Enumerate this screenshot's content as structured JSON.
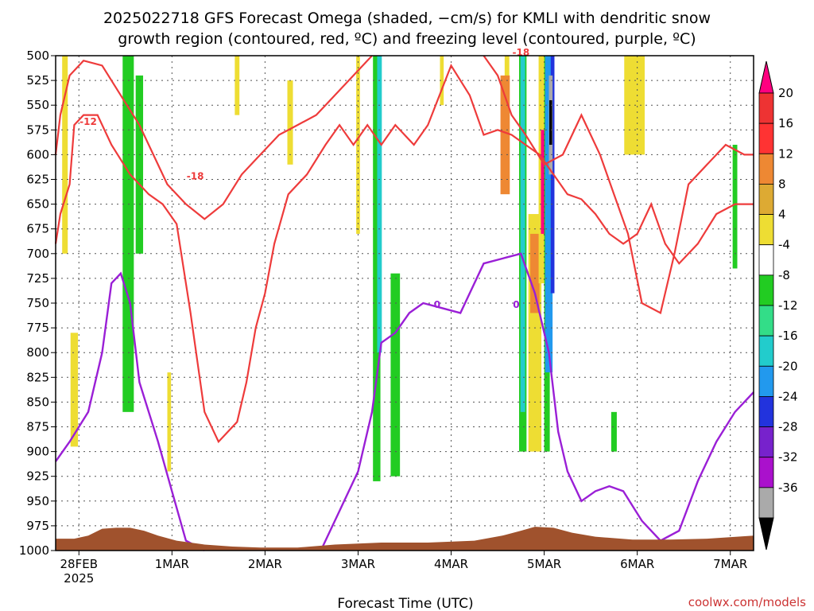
{
  "chart_data": {
    "type": "heatmap",
    "title_lines": [
      "2025022718 GFS Forecast Omega (shaded, −cm/s) for KMLI with dendritic snow",
      "growth region (contoured, red, ºC) and freezing level (contoured, purple, ºC)"
    ],
    "xlabel": "Forecast Time (UTC)",
    "credit": "coolwx.com/models",
    "x_axis": {
      "range_days": [
        "2025-02-27T18Z",
        "2025-03-07T06Z"
      ],
      "ticks": [
        {
          "label": "28FEB",
          "sublabel": "2025",
          "t": 0.25
        },
        {
          "label": "1MAR",
          "sublabel": "",
          "t": 1.25
        },
        {
          "label": "2MAR",
          "sublabel": "",
          "t": 2.25
        },
        {
          "label": "3MAR",
          "sublabel": "",
          "t": 3.25
        },
        {
          "label": "4MAR",
          "sublabel": "",
          "t": 4.25
        },
        {
          "label": "5MAR",
          "sublabel": "",
          "t": 5.25
        },
        {
          "label": "6MAR",
          "sublabel": "",
          "t": 6.25
        },
        {
          "label": "7MAR",
          "sublabel": "",
          "t": 7.25
        }
      ],
      "t_min": 0,
      "t_max": 7.5
    },
    "y_axis": {
      "unit": "hPa",
      "ylim": [
        500,
        1000
      ],
      "ticks": [
        500,
        525,
        550,
        575,
        600,
        625,
        650,
        675,
        700,
        725,
        750,
        775,
        800,
        825,
        850,
        875,
        900,
        925,
        950,
        975,
        1000
      ],
      "grid": true
    },
    "colorbar": {
      "levels": [
        20,
        16,
        12,
        8,
        4,
        -4,
        -8,
        -12,
        -16,
        -20,
        -24,
        -28,
        -32,
        -36
      ],
      "colors": [
        "#ff0080",
        "#ee3333",
        "#ff3333",
        "#ee8833",
        "#ddaa33",
        "#eedd33",
        "#ffffff",
        "#22cc22",
        "#33dd88",
        "#22cccc",
        "#2299ee",
        "#2233dd",
        "#7722cc",
        "#aa11cc",
        "#aaaaaa",
        "#000000"
      ]
    },
    "omega_bands": [
      {
        "t": 0.1,
        "width": 0.06,
        "p_top": 500,
        "p_bot": 700,
        "color": "#eedd33"
      },
      {
        "t": 0.2,
        "width": 0.08,
        "p_top": 780,
        "p_bot": 895,
        "color": "#eedd33"
      },
      {
        "t": 0.78,
        "width": 0.12,
        "p_top": 500,
        "p_bot": 860,
        "color": "#22cc22"
      },
      {
        "t": 0.9,
        "width": 0.08,
        "p_top": 520,
        "p_bot": 700,
        "color": "#22cc22"
      },
      {
        "t": 1.22,
        "width": 0.04,
        "p_top": 820,
        "p_bot": 920,
        "color": "#eedd33"
      },
      {
        "t": 1.95,
        "width": 0.05,
        "p_top": 500,
        "p_bot": 560,
        "color": "#eedd33"
      },
      {
        "t": 2.52,
        "width": 0.06,
        "p_top": 525,
        "p_bot": 610,
        "color": "#eedd33"
      },
      {
        "t": 3.25,
        "width": 0.04,
        "p_top": 500,
        "p_bot": 680,
        "color": "#eedd33"
      },
      {
        "t": 3.45,
        "width": 0.08,
        "p_top": 500,
        "p_bot": 930,
        "color": "#22cc22"
      },
      {
        "t": 3.48,
        "width": 0.05,
        "p_top": 500,
        "p_bot": 800,
        "color": "#22cccc"
      },
      {
        "t": 3.65,
        "width": 0.1,
        "p_top": 720,
        "p_bot": 925,
        "color": "#22cc22"
      },
      {
        "t": 4.15,
        "width": 0.04,
        "p_top": 500,
        "p_bot": 550,
        "color": "#eedd33"
      },
      {
        "t": 4.85,
        "width": 0.05,
        "p_top": 500,
        "p_bot": 600,
        "color": "#eedd33"
      },
      {
        "t": 4.83,
        "width": 0.1,
        "p_top": 520,
        "p_bot": 640,
        "color": "#ee8833"
      },
      {
        "t": 5.02,
        "width": 0.08,
        "p_top": 500,
        "p_bot": 900,
        "color": "#22cc22"
      },
      {
        "t": 5.02,
        "width": 0.05,
        "p_top": 500,
        "p_bot": 860,
        "color": "#22cccc"
      },
      {
        "t": 5.15,
        "width": 0.14,
        "p_top": 660,
        "p_bot": 900,
        "color": "#eedd33"
      },
      {
        "t": 5.15,
        "width": 0.1,
        "p_top": 680,
        "p_bot": 760,
        "color": "#ee8833"
      },
      {
        "t": 5.22,
        "width": 0.06,
        "p_top": 500,
        "p_bot": 730,
        "color": "#eedd33"
      },
      {
        "t": 5.24,
        "width": 0.05,
        "p_top": 575,
        "p_bot": 680,
        "color": "#ff0080"
      },
      {
        "t": 5.28,
        "width": 0.06,
        "p_top": 500,
        "p_bot": 900,
        "color": "#22cc22"
      },
      {
        "t": 5.3,
        "width": 0.08,
        "p_top": 500,
        "p_bot": 820,
        "color": "#2299ee"
      },
      {
        "t": 5.34,
        "width": 0.04,
        "p_top": 500,
        "p_bot": 740,
        "color": "#2233dd"
      },
      {
        "t": 5.32,
        "width": 0.04,
        "p_top": 520,
        "p_bot": 620,
        "color": "#aaaaaa"
      },
      {
        "t": 5.32,
        "width": 0.03,
        "p_top": 545,
        "p_bot": 590,
        "color": "#000000"
      },
      {
        "t": 6.15,
        "width": 0.06,
        "p_top": 500,
        "p_bot": 540,
        "color": "#ee8833"
      },
      {
        "t": 6.22,
        "width": 0.22,
        "p_top": 500,
        "p_bot": 600,
        "color": "#eedd33"
      },
      {
        "t": 6.0,
        "width": 0.06,
        "p_top": 860,
        "p_bot": 900,
        "color": "#22cc22"
      },
      {
        "t": 7.3,
        "width": 0.05,
        "p_top": 590,
        "p_bot": 715,
        "color": "#22cc22"
      }
    ],
    "dgz_contours": [
      {
        "label": "-12",
        "label_t": 0.35,
        "label_p": 570,
        "points": [
          [
            0.0,
            690
          ],
          [
            0.05,
            660
          ],
          [
            0.15,
            630
          ],
          [
            0.2,
            570
          ],
          [
            0.3,
            560
          ],
          [
            0.45,
            560
          ],
          [
            0.6,
            590
          ],
          [
            0.8,
            620
          ],
          [
            1.0,
            640
          ],
          [
            1.15,
            650
          ],
          [
            1.3,
            670
          ],
          [
            1.45,
            760
          ],
          [
            1.6,
            860
          ],
          [
            1.75,
            890
          ],
          [
            1.95,
            870
          ],
          [
            2.05,
            830
          ],
          [
            2.15,
            775
          ],
          [
            2.25,
            740
          ],
          [
            2.35,
            690
          ],
          [
            2.5,
            640
          ],
          [
            2.7,
            620
          ],
          [
            2.9,
            590
          ],
          [
            3.05,
            570
          ],
          [
            3.2,
            590
          ],
          [
            3.35,
            570
          ],
          [
            3.5,
            590
          ],
          [
            3.65,
            570
          ],
          [
            3.85,
            590
          ],
          [
            4.0,
            570
          ],
          [
            4.25,
            510
          ],
          [
            4.45,
            540
          ],
          [
            4.6,
            580
          ],
          [
            4.75,
            575
          ],
          [
            4.9,
            580
          ],
          [
            5.05,
            590
          ],
          [
            5.2,
            600
          ],
          [
            5.35,
            620
          ],
          [
            5.5,
            640
          ],
          [
            5.65,
            645
          ],
          [
            5.8,
            660
          ],
          [
            5.95,
            680
          ],
          [
            6.1,
            690
          ],
          [
            6.25,
            680
          ],
          [
            6.4,
            650
          ],
          [
            6.55,
            690
          ],
          [
            6.7,
            710
          ],
          [
            6.9,
            690
          ],
          [
            7.1,
            660
          ],
          [
            7.3,
            650
          ],
          [
            7.5,
            650
          ]
        ]
      },
      {
        "label": "-18",
        "label_t": 1.5,
        "label_p": 625,
        "points": [
          [
            0.0,
            600
          ],
          [
            0.05,
            560
          ],
          [
            0.15,
            520
          ],
          [
            0.3,
            505
          ],
          [
            0.5,
            510
          ],
          [
            0.7,
            540
          ],
          [
            0.9,
            570
          ],
          [
            1.05,
            600
          ],
          [
            1.2,
            630
          ],
          [
            1.4,
            650
          ],
          [
            1.6,
            665
          ],
          [
            1.8,
            650
          ],
          [
            2.0,
            620
          ],
          [
            2.2,
            600
          ],
          [
            2.4,
            580
          ],
          [
            2.6,
            570
          ],
          [
            2.8,
            560
          ],
          [
            3.0,
            540
          ],
          [
            3.2,
            520
          ],
          [
            3.4,
            500
          ]
        ]
      },
      {
        "label": "-18",
        "label_t": 5.0,
        "label_p": 500,
        "points": [
          [
            4.6,
            500
          ],
          [
            4.75,
            520
          ],
          [
            4.9,
            560
          ],
          [
            5.05,
            580
          ],
          [
            5.25,
            610
          ],
          [
            5.45,
            600
          ],
          [
            5.65,
            560
          ],
          [
            5.85,
            600
          ],
          [
            6.0,
            640
          ],
          [
            6.15,
            680
          ],
          [
            6.3,
            750
          ],
          [
            6.5,
            760
          ],
          [
            6.65,
            700
          ],
          [
            6.8,
            630
          ],
          [
            7.0,
            610
          ],
          [
            7.2,
            590
          ],
          [
            7.4,
            600
          ],
          [
            7.5,
            600
          ]
        ]
      }
    ],
    "freezing_contours": [
      {
        "label": "0",
        "label_t": 4.1,
        "label_p": 755,
        "points": [
          [
            0.0,
            910
          ],
          [
            0.15,
            890
          ],
          [
            0.35,
            860
          ],
          [
            0.5,
            800
          ],
          [
            0.6,
            730
          ],
          [
            0.7,
            720
          ],
          [
            0.8,
            750
          ],
          [
            0.9,
            830
          ],
          [
            1.0,
            860
          ],
          [
            1.1,
            890
          ],
          [
            1.25,
            940
          ],
          [
            1.4,
            990
          ],
          [
            1.6,
            1000
          ]
        ]
      },
      {
        "label": "0",
        "label_t": 4.95,
        "label_p": 755,
        "points": [
          [
            2.85,
            1000
          ],
          [
            3.05,
            960
          ],
          [
            3.25,
            920
          ],
          [
            3.4,
            860
          ],
          [
            3.5,
            790
          ],
          [
            3.65,
            780
          ],
          [
            3.8,
            760
          ],
          [
            3.95,
            750
          ],
          [
            4.15,
            755
          ],
          [
            4.35,
            760
          ],
          [
            4.6,
            710
          ],
          [
            4.8,
            705
          ],
          [
            5.0,
            700
          ],
          [
            5.15,
            740
          ],
          [
            5.3,
            800
          ],
          [
            5.4,
            880
          ],
          [
            5.5,
            920
          ],
          [
            5.65,
            950
          ],
          [
            5.8,
            940
          ],
          [
            5.95,
            935
          ],
          [
            6.1,
            940
          ],
          [
            6.3,
            970
          ],
          [
            6.5,
            990
          ],
          [
            6.7,
            980
          ],
          [
            6.9,
            930
          ],
          [
            7.1,
            890
          ],
          [
            7.3,
            860
          ],
          [
            7.5,
            840
          ]
        ]
      }
    ],
    "terrain": {
      "color": "#a0522d",
      "points": [
        [
          0.0,
          988
        ],
        [
          0.2,
          988
        ],
        [
          0.35,
          985
        ],
        [
          0.5,
          978
        ],
        [
          0.65,
          977
        ],
        [
          0.8,
          977
        ],
        [
          0.95,
          980
        ],
        [
          1.1,
          985
        ],
        [
          1.3,
          990
        ],
        [
          1.6,
          994
        ],
        [
          1.9,
          996
        ],
        [
          2.2,
          997
        ],
        [
          2.6,
          997
        ],
        [
          3.0,
          994
        ],
        [
          3.5,
          992
        ],
        [
          4.0,
          992
        ],
        [
          4.5,
          990
        ],
        [
          4.8,
          985
        ],
        [
          5.0,
          980
        ],
        [
          5.15,
          976
        ],
        [
          5.35,
          977
        ],
        [
          5.55,
          982
        ],
        [
          5.8,
          986
        ],
        [
          6.2,
          989
        ],
        [
          6.6,
          989
        ],
        [
          7.0,
          988
        ],
        [
          7.5,
          985
        ]
      ]
    }
  }
}
